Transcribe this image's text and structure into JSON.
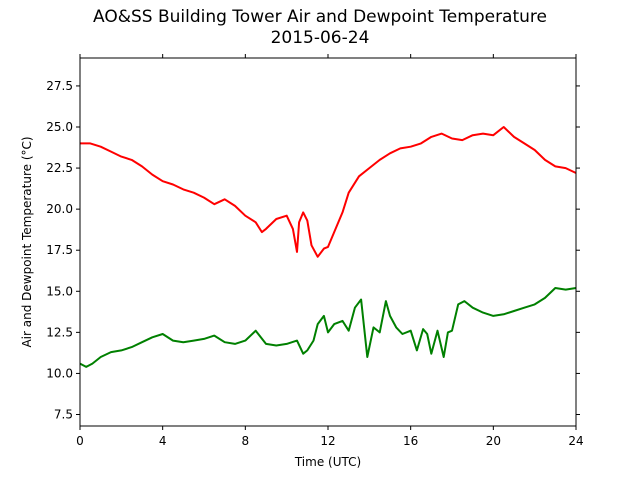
{
  "chart_data": {
    "type": "line",
    "title": "AO&SS Building Tower Air and Dewpoint Temperature",
    "subtitle": "2015-06-24",
    "xlabel": "Time (UTC)",
    "ylabel": "Air and Dewpoint Temperature (°C)",
    "xlim": [
      0,
      24
    ],
    "ylim": [
      6.8,
      29.2
    ],
    "xticks": [
      0,
      4,
      8,
      12,
      16,
      20,
      24
    ],
    "yticks": [
      7.5,
      10.0,
      12.5,
      15.0,
      17.5,
      20.0,
      22.5,
      25.0,
      27.5
    ],
    "grid": false,
    "series": [
      {
        "color": "#ff0000",
        "x": [
          0.0,
          0.5,
          1.0,
          1.5,
          2.0,
          2.5,
          3.0,
          3.5,
          4.0,
          4.5,
          5.0,
          5.5,
          6.0,
          6.5,
          7.0,
          7.5,
          8.0,
          8.5,
          8.8,
          9.0,
          9.5,
          10.0,
          10.3,
          10.5,
          10.6,
          10.8,
          11.0,
          11.2,
          11.5,
          11.8,
          12.0,
          12.3,
          12.7,
          13.0,
          13.5,
          14.0,
          14.5,
          15.0,
          15.5,
          16.0,
          16.5,
          17.0,
          17.5,
          18.0,
          18.5,
          19.0,
          19.5,
          20.0,
          20.5,
          21.0,
          21.5,
          22.0,
          22.5,
          23.0,
          23.5,
          24.0
        ],
        "y": [
          24.0,
          24.0,
          23.8,
          23.5,
          23.2,
          23.0,
          22.6,
          22.1,
          21.7,
          21.5,
          21.2,
          21.0,
          20.7,
          20.3,
          20.6,
          20.2,
          19.6,
          19.2,
          18.6,
          18.8,
          19.4,
          19.6,
          18.8,
          17.4,
          19.2,
          19.8,
          19.3,
          17.8,
          17.1,
          17.6,
          17.7,
          18.6,
          19.8,
          21.0,
          22.0,
          22.5,
          23.0,
          23.4,
          23.7,
          23.8,
          24.0,
          24.4,
          24.6,
          24.3,
          24.2,
          24.5,
          24.6,
          24.5,
          25.0,
          24.4,
          24.0,
          23.6,
          23.0,
          22.6,
          22.5,
          22.2
        ]
      },
      {
        "color": "#008000",
        "x": [
          0.0,
          0.3,
          0.6,
          1.0,
          1.5,
          2.0,
          2.5,
          3.0,
          3.5,
          4.0,
          4.5,
          5.0,
          5.5,
          6.0,
          6.5,
          7.0,
          7.5,
          8.0,
          8.5,
          9.0,
          9.5,
          10.0,
          10.5,
          10.8,
          11.0,
          11.3,
          11.5,
          11.8,
          12.0,
          12.3,
          12.7,
          13.0,
          13.3,
          13.6,
          13.9,
          14.2,
          14.5,
          14.8,
          15.0,
          15.3,
          15.6,
          16.0,
          16.3,
          16.6,
          16.8,
          17.0,
          17.3,
          17.6,
          17.8,
          18.0,
          18.3,
          18.6,
          19.0,
          19.5,
          20.0,
          20.5,
          21.0,
          21.5,
          22.0,
          22.5,
          23.0,
          23.5,
          24.0
        ],
        "y": [
          10.6,
          10.4,
          10.6,
          11.0,
          11.3,
          11.4,
          11.6,
          11.9,
          12.2,
          12.4,
          12.0,
          11.9,
          12.0,
          12.1,
          12.3,
          11.9,
          11.8,
          12.0,
          12.6,
          11.8,
          11.7,
          11.8,
          12.0,
          11.2,
          11.4,
          12.0,
          13.0,
          13.5,
          12.5,
          13.0,
          13.2,
          12.6,
          14.0,
          14.5,
          11.0,
          12.8,
          12.5,
          14.4,
          13.5,
          12.8,
          12.4,
          12.6,
          11.4,
          12.7,
          12.4,
          11.2,
          12.6,
          11.0,
          12.5,
          12.6,
          14.2,
          14.4,
          14.0,
          13.7,
          13.5,
          13.6,
          13.8,
          14.0,
          14.2,
          14.6,
          15.2,
          15.1,
          15.2
        ]
      }
    ]
  }
}
